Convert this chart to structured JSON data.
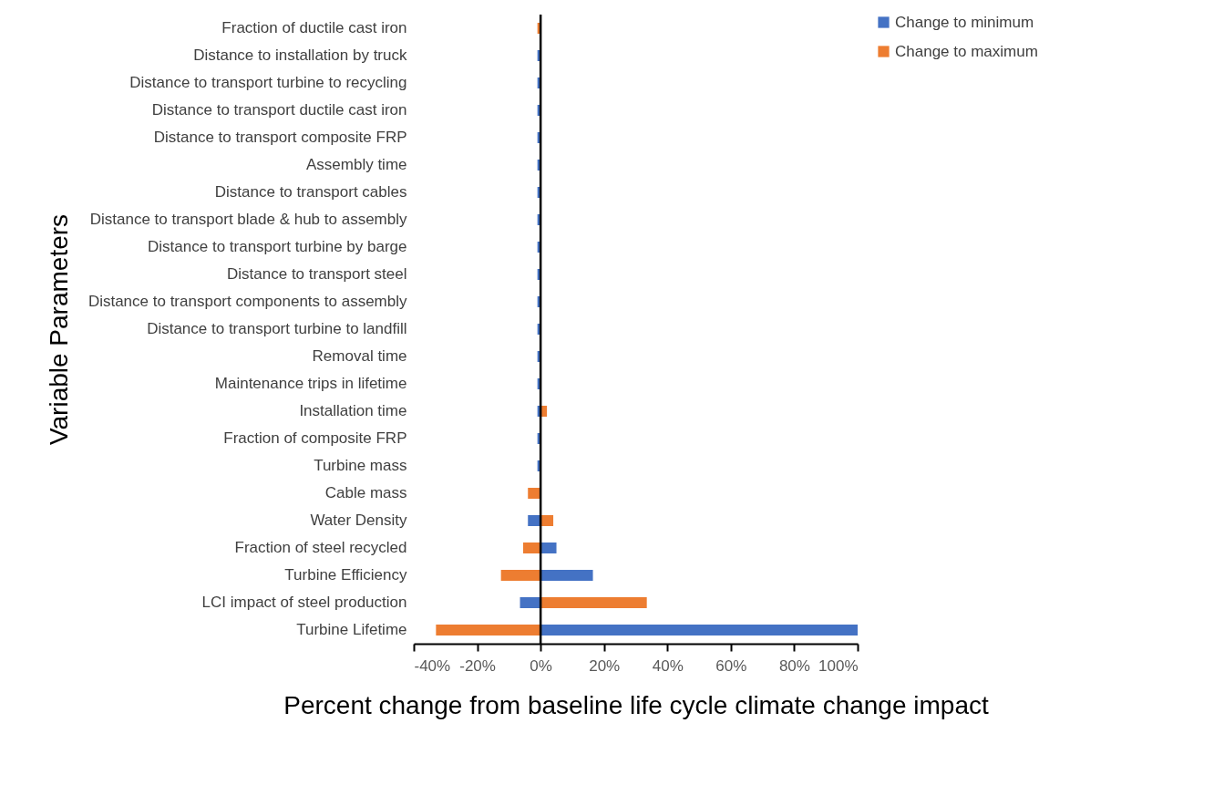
{
  "chart_data": {
    "type": "bar",
    "orientation": "horizontal",
    "xlabel": "Percent change from baseline life cycle climate change impact",
    "ylabel": "Variable Parameters",
    "categories": [
      "Fraction of ductile cast iron",
      "Distance to installation by truck",
      "Distance to transport turbine to recycling",
      "Distance to transport ductile cast iron",
      "Distance to transport composite FRP",
      "Assembly time",
      "Distance to transport cables",
      "Distance to transport blade & hub to assembly",
      "Distance to transport turbine by barge",
      "Distance to transport steel",
      "Distance to transport components to assembly",
      "Distance to transport turbine to landfill",
      "Removal time",
      "Maintenance trips in lifetime",
      "Installation time",
      "Fraction of composite FRP",
      "Turbine mass",
      "Cable mass",
      "Water Density",
      "Fraction of steel recycled",
      "Turbine Efficiency",
      "LCI impact of steel production",
      "Turbine Lifetime"
    ],
    "series": [
      {
        "name": "Change to minimum",
        "color": "#4472c4",
        "values": [
          null,
          -1,
          -1,
          -1,
          -1,
          -1,
          -1,
          -1,
          -1,
          -1,
          -1,
          -1,
          -1,
          -1,
          -1,
          -1,
          -1,
          null,
          -4,
          5,
          16.5,
          -6.5,
          100
        ]
      },
      {
        "name": "Change to maximum",
        "color": "#ed7d31",
        "values": [
          -1,
          null,
          null,
          null,
          null,
          null,
          null,
          null,
          null,
          null,
          null,
          null,
          null,
          null,
          2,
          null,
          null,
          -4,
          4,
          -5.5,
          -12.5,
          33.5,
          -33
        ]
      }
    ],
    "xlim": [
      -40,
      100
    ],
    "xticks": [
      {
        "value": -40,
        "label": "-40%"
      },
      {
        "value": -20,
        "label": "-20%"
      },
      {
        "value": 0,
        "label": "0%"
      },
      {
        "value": 20,
        "label": "20%"
      },
      {
        "value": 40,
        "label": "40%"
      },
      {
        "value": 60,
        "label": "60%"
      },
      {
        "value": 80,
        "label": "80%"
      },
      {
        "value": 100,
        "label": "100%"
      }
    ],
    "ref_lines": [
      {
        "axis": "x",
        "value": 0,
        "color": "#000000"
      }
    ],
    "legend": "right"
  }
}
